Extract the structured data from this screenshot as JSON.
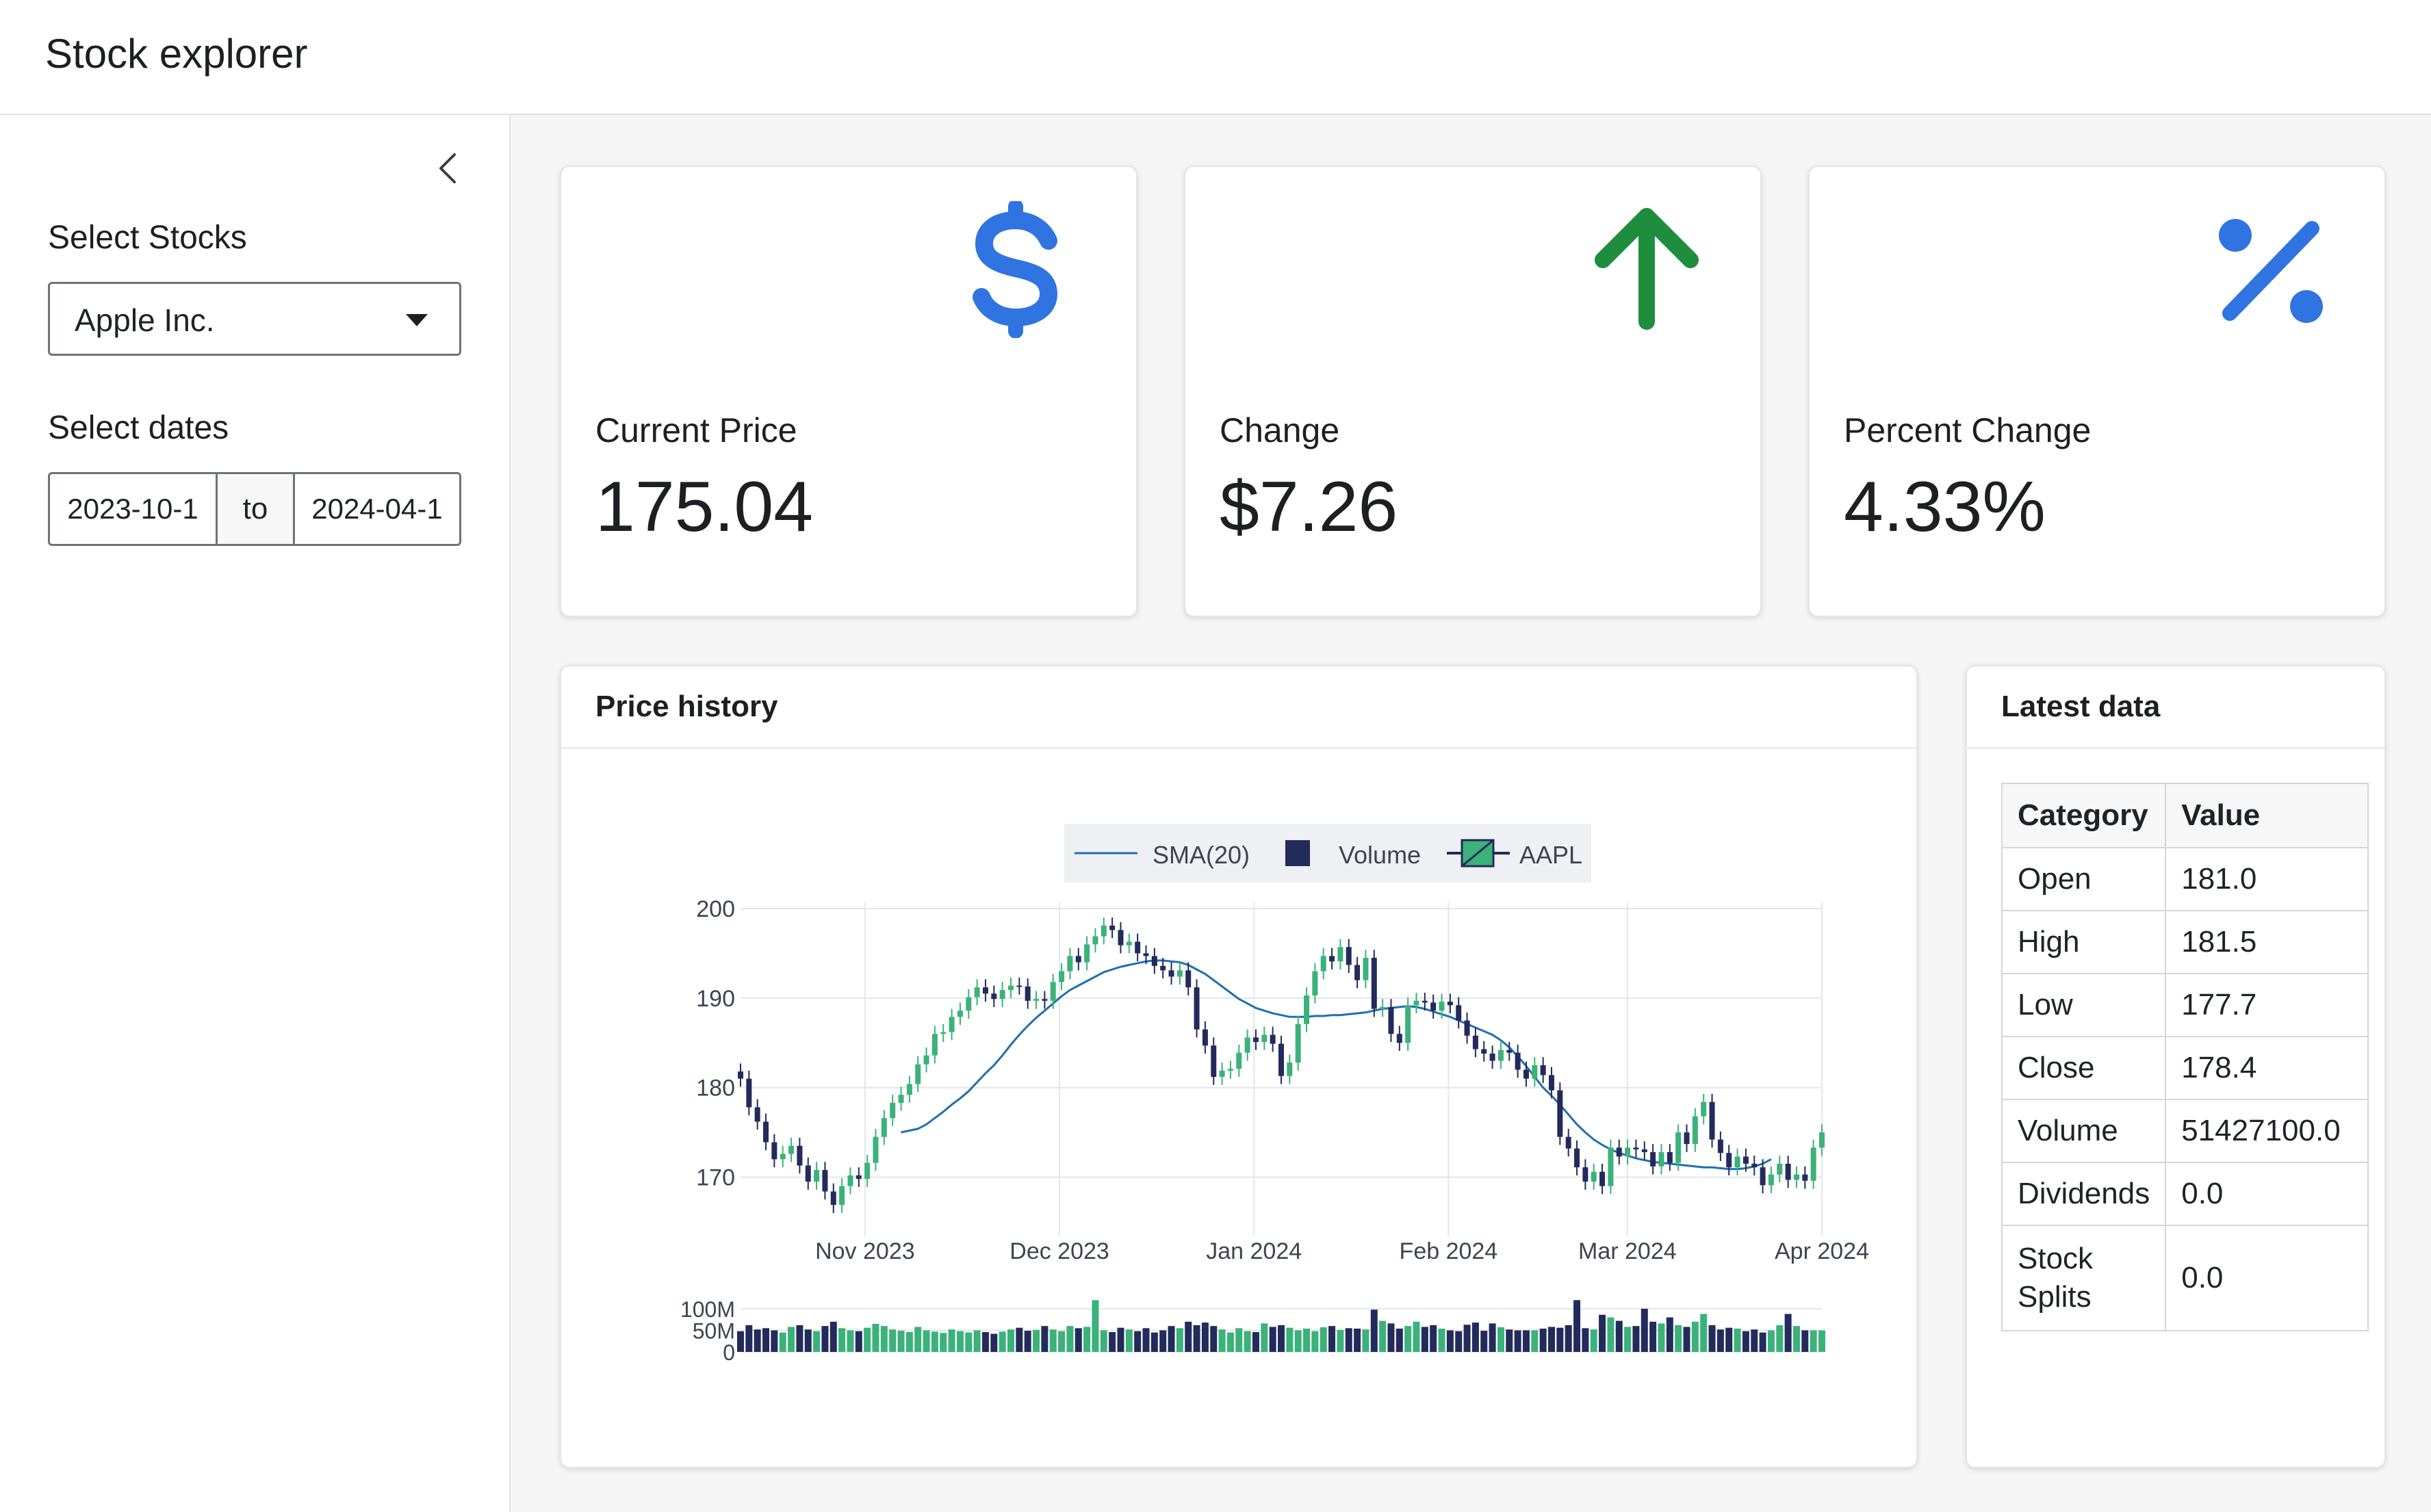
{
  "app": {
    "title": "Stock explorer"
  },
  "sidebar": {
    "stocks_label": "Select Stocks",
    "stock_value": "Apple Inc.",
    "dates_label": "Select dates",
    "date_start": "2023-10-1",
    "date_sep": "to",
    "date_end": "2024-04-1"
  },
  "value_boxes": [
    {
      "title": "Current Price",
      "value": "175.04",
      "icon": "dollar-icon",
      "color": "#2f74e0"
    },
    {
      "title": "Change",
      "value": "$7.26",
      "icon": "arrow-up-icon",
      "color": "#1e8e3e"
    },
    {
      "title": "Percent Change",
      "value": "4.33%",
      "icon": "percent-icon",
      "color": "#2f74e0"
    }
  ],
  "price_history": {
    "title": "Price history"
  },
  "latest_data": {
    "title": "Latest data",
    "headers": [
      "Category",
      "Value"
    ],
    "rows": [
      [
        "Open",
        "181.0"
      ],
      [
        "High",
        "181.5"
      ],
      [
        "Low",
        "177.7"
      ],
      [
        "Close",
        "178.4"
      ],
      [
        "Volume",
        "51427100.0"
      ],
      [
        "Dividends",
        "0.0"
      ],
      [
        "Stock Splits",
        "0.0"
      ]
    ]
  },
  "chart_data": {
    "type": "candlestick",
    "legend": [
      "SMA(20)",
      "Volume",
      "AAPL"
    ],
    "legend_position": "top-center",
    "colors": {
      "up": "#3bb27a",
      "down": "#232b5c",
      "sma": "#1f6fb2"
    },
    "x_ticks": [
      "Nov 2023",
      "Dec 2023",
      "Jan 2024",
      "Feb 2024",
      "Mar 2024",
      "Apr 2024"
    ],
    "y_ticks": [
      "200",
      "190",
      "180",
      "170"
    ],
    "y_range": [
      165,
      200
    ],
    "volume_ticks": [
      "100M",
      "50M",
      "0"
    ],
    "volume_range": [
      0,
      130
    ],
    "grid": true,
    "closes": [
      181.0,
      177.8,
      176.2,
      173.9,
      172.0,
      172.6,
      173.5,
      171.3,
      169.5,
      170.8,
      168.4,
      166.9,
      169.0,
      170.2,
      169.8,
      171.6,
      174.5,
      176.6,
      178.3,
      179.2,
      180.4,
      182.6,
      183.6,
      186.0,
      186.2,
      187.9,
      188.6,
      190.1,
      191.2,
      190.5,
      189.9,
      190.9,
      191.4,
      191.3,
      189.7,
      189.9,
      189.7,
      191.8,
      193.0,
      194.7,
      194.0,
      196.0,
      196.9,
      198.1,
      197.6,
      195.9,
      196.3,
      195.0,
      194.7,
      193.6,
      193.1,
      192.4,
      193.1,
      191.2,
      186.5,
      184.7,
      181.2,
      181.9,
      182.1,
      183.9,
      185.6,
      185.1,
      185.9,
      184.9,
      181.3,
      182.8,
      187.1,
      190.3,
      193.0,
      194.7,
      194.1,
      195.7,
      193.7,
      192.0,
      194.5,
      188.8,
      189.0,
      186.0,
      185.0,
      189.2,
      189.7,
      189.5,
      188.6,
      189.6,
      189.2,
      187.5,
      185.8,
      184.3,
      183.8,
      183.0,
      184.2,
      183.9,
      182.0,
      181.0,
      182.5,
      181.4,
      179.7,
      174.5,
      173.2,
      171.1,
      169.5,
      170.6,
      169.0,
      173.3,
      172.3,
      173.3,
      173.1,
      172.8,
      171.2,
      172.8,
      171.6,
      175.0,
      173.7,
      176.8,
      178.4,
      174.2,
      172.7,
      171.1,
      172.3,
      171.5,
      171.1,
      169.1,
      170.3,
      171.5,
      169.7,
      170.3,
      169.6,
      173.3,
      175.0
    ],
    "sma": [
      null,
      null,
      null,
      null,
      null,
      null,
      null,
      null,
      null,
      null,
      null,
      null,
      null,
      null,
      null,
      null,
      null,
      null,
      null,
      175.0,
      175.2,
      175.4,
      175.9,
      176.6,
      177.3,
      178.1,
      178.8,
      179.6,
      180.6,
      181.6,
      182.5,
      183.6,
      184.8,
      185.9,
      186.9,
      187.8,
      188.6,
      189.4,
      190.2,
      190.9,
      191.4,
      191.9,
      192.4,
      192.9,
      193.2,
      193.5,
      193.7,
      193.9,
      194.1,
      194.2,
      194.2,
      194.1,
      194.0,
      193.7,
      193.2,
      192.7,
      192.0,
      191.3,
      190.6,
      189.9,
      189.4,
      188.9,
      188.6,
      188.3,
      188.1,
      187.9,
      187.9,
      187.9,
      188.0,
      188.0,
      188.1,
      188.1,
      188.2,
      188.3,
      188.4,
      188.6,
      188.8,
      188.9,
      189.0,
      189.1,
      189.0,
      188.8,
      188.5,
      188.2,
      187.9,
      187.5,
      187.1,
      186.7,
      186.3,
      185.9,
      185.3,
      184.5,
      183.5,
      182.4,
      181.2,
      180.0,
      179.1,
      178.1,
      177.0,
      175.9,
      175.0,
      174.2,
      173.6,
      173.1,
      172.7,
      172.4,
      172.1,
      171.9,
      171.7,
      171.6,
      171.5,
      171.4,
      171.3,
      171.2,
      171.1,
      171.1,
      171.0,
      170.9,
      170.9,
      171.0,
      171.2,
      171.5,
      172.0
    ],
    "volumes": [
      48,
      62,
      52,
      55,
      50,
      45,
      58,
      62,
      52,
      48,
      60,
      70,
      55,
      50,
      48,
      56,
      65,
      60,
      52,
      49,
      46,
      58,
      50,
      47,
      44,
      52,
      48,
      45,
      50,
      46,
      42,
      47,
      52,
      56,
      49,
      51,
      60,
      52,
      48,
      60,
      55,
      58,
      120,
      50,
      46,
      56,
      52,
      48,
      55,
      45,
      50,
      60,
      55,
      70,
      62,
      68,
      60,
      52,
      45,
      55,
      48,
      46,
      66,
      58,
      62,
      56,
      50,
      54,
      48,
      57,
      60,
      51,
      55,
      54,
      52,
      98,
      72,
      66,
      54,
      60,
      70,
      58,
      62,
      54,
      50,
      48,
      63,
      68,
      49,
      66,
      57,
      52,
      50,
      50,
      50,
      54,
      58,
      56,
      62,
      120,
      55,
      52,
      86,
      80,
      72,
      58,
      60,
      100,
      70,
      66,
      80,
      62,
      58,
      70,
      88,
      62,
      52,
      56,
      54,
      48,
      52,
      45,
      50,
      62,
      88,
      60
    ]
  }
}
